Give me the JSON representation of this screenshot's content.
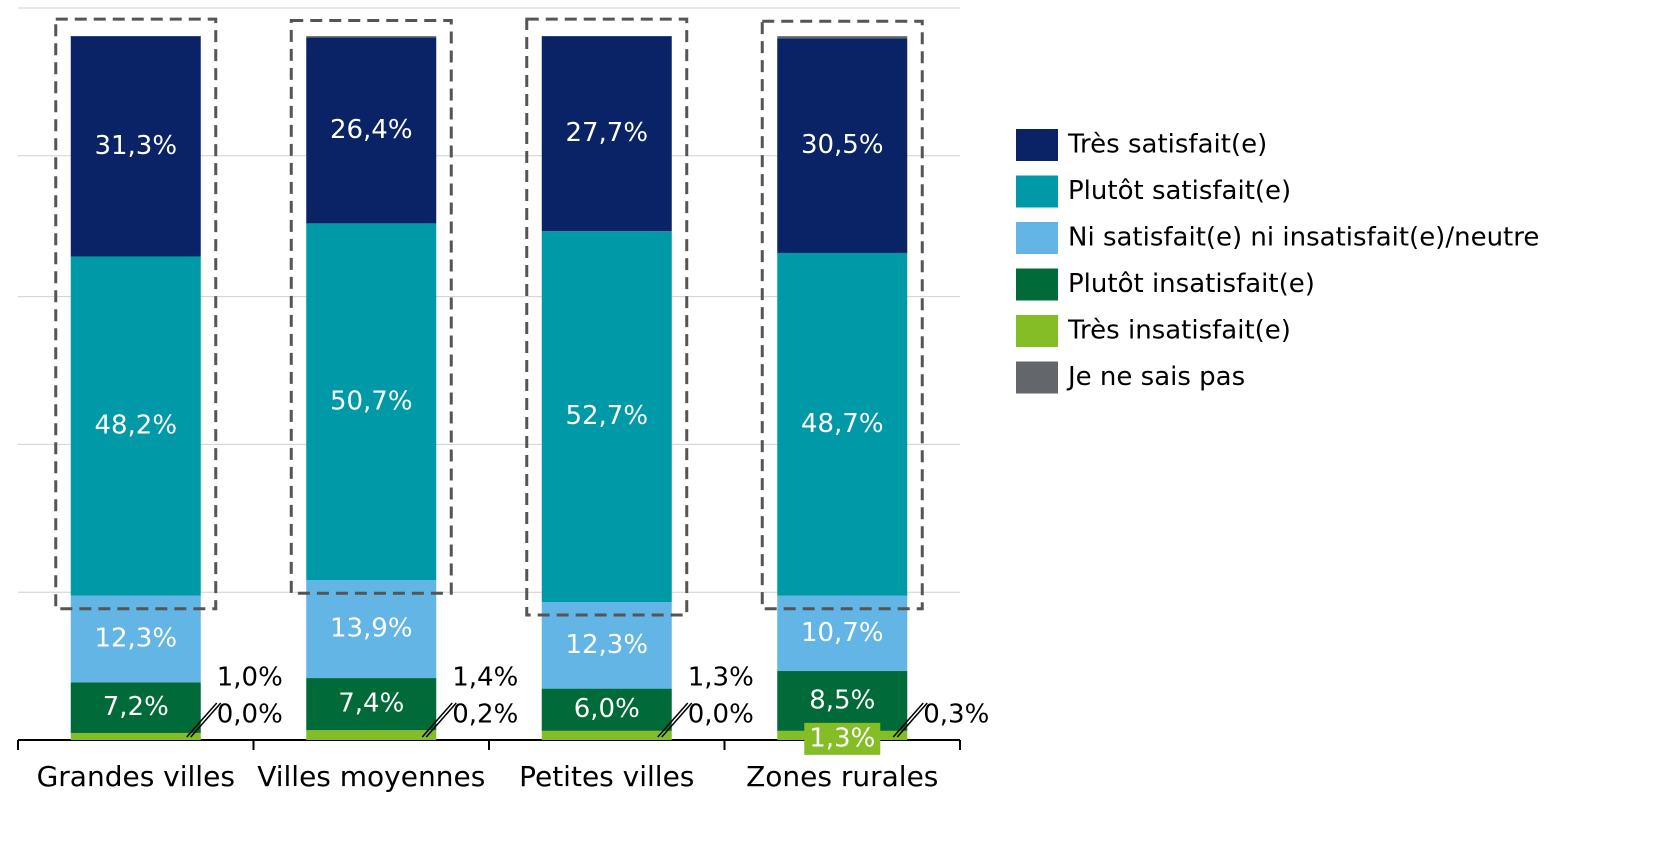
{
  "chart_data": {
    "type": "stacked-bar",
    "categories": [
      "Grandes villes",
      "Villes moyennes",
      "Petites villes",
      "Zones rurales"
    ],
    "series": [
      {
        "name": "Très insatisfait(e)",
        "color": "#84bd26",
        "values": [
          1.0,
          1.4,
          1.3,
          1.3
        ],
        "value_labels": [
          "1,0%",
          "1,4%",
          "1,3%",
          "1,3%"
        ]
      },
      {
        "name": "Plutôt insatisfait(e)",
        "color": "#006a39",
        "values": [
          7.2,
          7.4,
          6.0,
          8.5
        ],
        "value_labels": [
          "7,2%",
          "7,4%",
          "6,0%",
          "8,5%"
        ]
      },
      {
        "name": "Ni satisfait(e) ni insatisfait(e)/neutre",
        "color": "#62b5e5",
        "values": [
          12.3,
          13.9,
          12.3,
          10.7
        ],
        "value_labels": [
          "12,3%",
          "13,9%",
          "12,3%",
          "10,7%"
        ]
      },
      {
        "name": "Plutôt satisfait(e)",
        "color": "#0099a8",
        "values": [
          48.2,
          50.7,
          52.7,
          48.7
        ],
        "value_labels": [
          "48,2%",
          "50,7%",
          "52,7%",
          "48,7%"
        ]
      },
      {
        "name": "Très satisfait(e)",
        "color": "#0a2266",
        "values": [
          31.3,
          26.4,
          27.7,
          30.5
        ],
        "value_labels": [
          "31,3%",
          "26,4%",
          "27,7%",
          "30,5%"
        ]
      },
      {
        "name": "Je ne sais pas",
        "color": "#63666a",
        "values": [
          0.0,
          0.2,
          0.0,
          0.3
        ],
        "value_labels": [
          "0,0%",
          "0,2%",
          "0,0%",
          "0,3%"
        ]
      }
    ],
    "ylim": [
      0,
      104
    ],
    "yticks": [
      21,
      42,
      63,
      83,
      104
    ],
    "grid": true
  }
}
